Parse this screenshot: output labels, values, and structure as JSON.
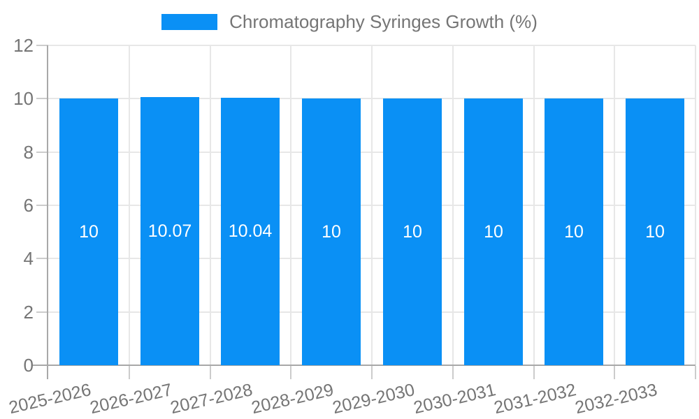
{
  "legend": {
    "swatch": "series-color",
    "title": "Chromatography Syringes Growth (%)"
  },
  "chart_data": {
    "type": "bar",
    "title": "Chromatography Syringes Growth (%)",
    "categories": [
      "2025-2026",
      "2026-2027",
      "2027-2028",
      "2028-2029",
      "2029-2030",
      "2030-2031",
      "2031-2032",
      "2032-2033"
    ],
    "values": [
      10,
      10.07,
      10.04,
      10,
      10,
      10,
      10,
      10
    ],
    "value_labels": [
      "10",
      "10.07",
      "10.04",
      "10",
      "10",
      "10",
      "10",
      "10"
    ],
    "xlabel": "",
    "ylabel": "",
    "ylim": [
      0,
      12
    ],
    "yticks": [
      0,
      2,
      4,
      6,
      8,
      10,
      12
    ],
    "grid": true,
    "legend_position": "top-center",
    "x_tick_rotation_deg": -13,
    "colors": {
      "bar": "#0a90f5",
      "bar_label": "#ffffff",
      "axis_text": "#757575",
      "gridline": "#e7e7e7",
      "tick": "#cccccc",
      "axis_line": "#a8a8a8",
      "background": "#ffffff"
    }
  }
}
